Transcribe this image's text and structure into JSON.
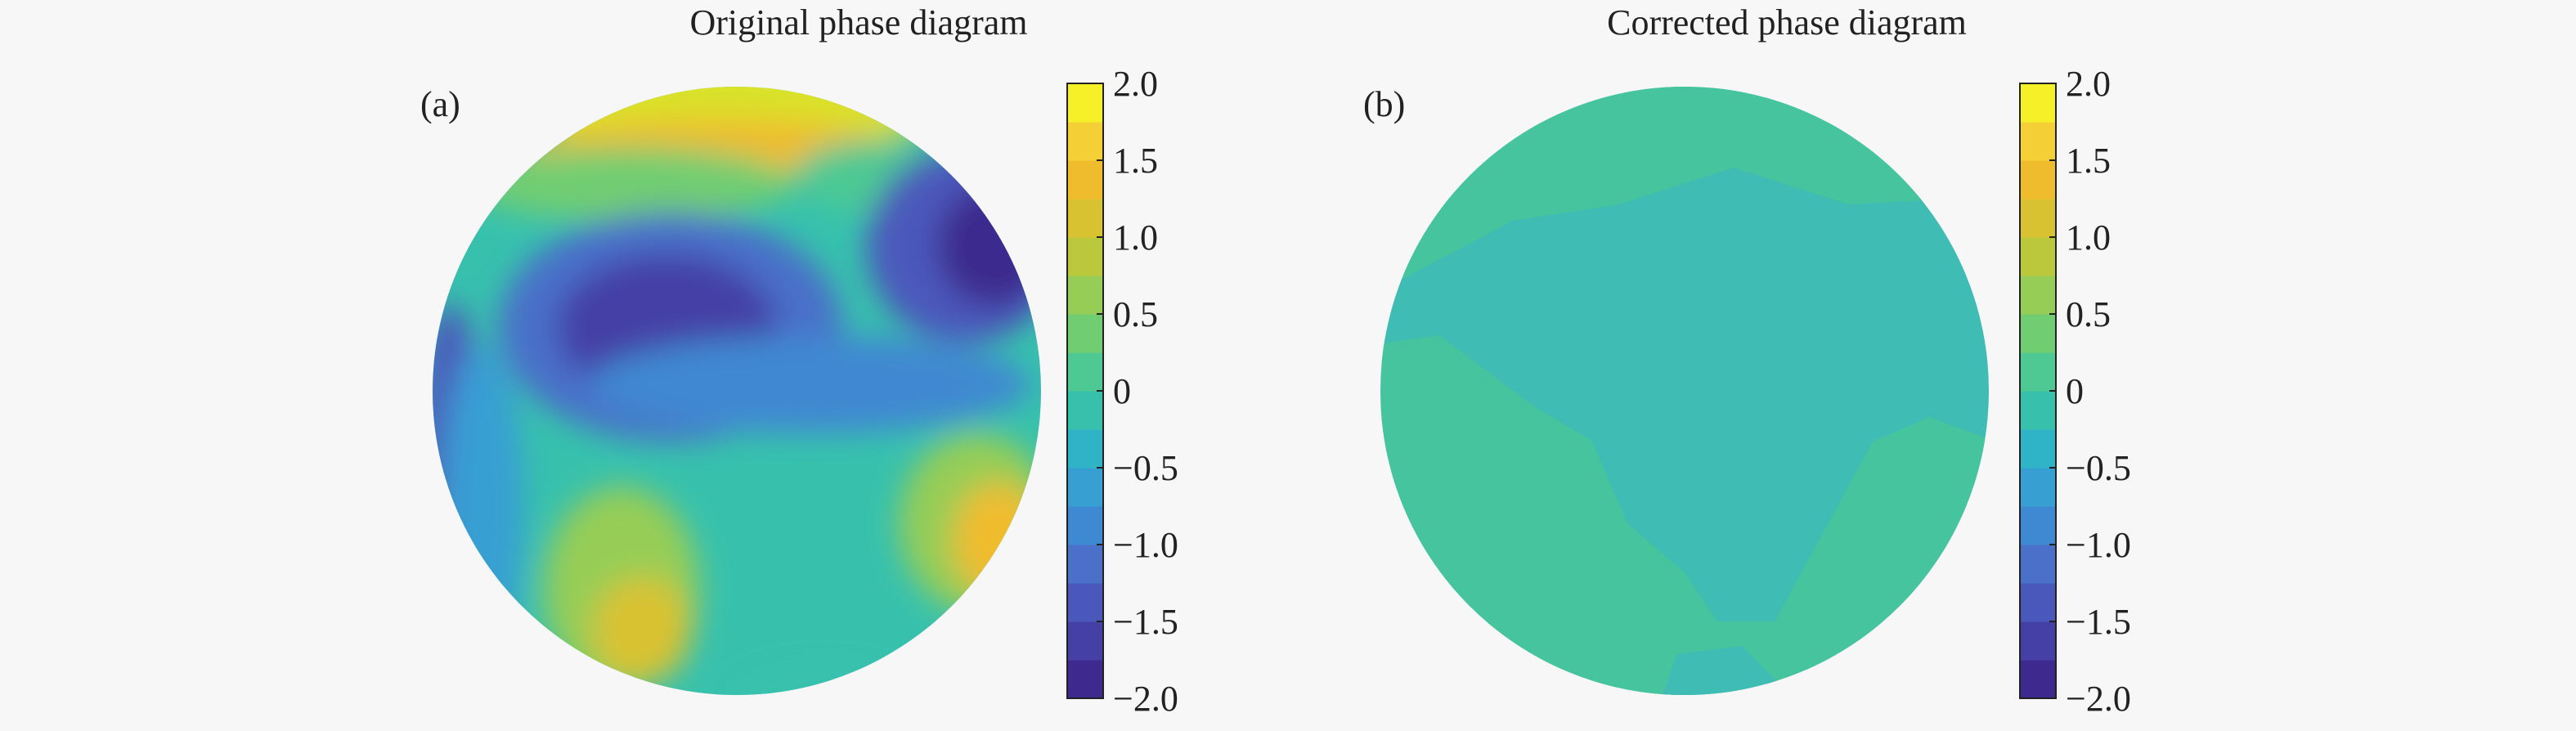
{
  "chart_data": [
    {
      "type": "heatmap",
      "title": "Original phase diagram",
      "panel_label": "(a)",
      "colorbar": {
        "ticks": [
          "2.0",
          "1.5",
          "1.0",
          "0.5",
          "0",
          "−0.5",
          "−1.0",
          "−1.5",
          "−2.0"
        ],
        "range": [
          -2.0,
          2.0
        ],
        "levels": 16
      },
      "grid": false,
      "domain_shape": "circular pupil"
    },
    {
      "type": "heatmap",
      "title": "Corrected phase diagram",
      "panel_label": "(b)",
      "colorbar": {
        "ticks": [
          "2.0",
          "1.5",
          "1.0",
          "0.5",
          "0",
          "−0.5",
          "−1.0",
          "−1.5",
          "−2.0"
        ],
        "range": [
          -2.0,
          2.0
        ],
        "levels": 16
      },
      "grid": false,
      "domain_shape": "circular pupil"
    }
  ],
  "colormap": [
    "#3e2a8e",
    "#4540a6",
    "#4b58bb",
    "#4a70c9",
    "#3f88d2",
    "#389fd3",
    "#2fb3c6",
    "#37c1ad",
    "#4ec993",
    "#71cd72",
    "#96cd56",
    "#bcc83c",
    "#d9c231",
    "#efbc2e",
    "#f4cf36",
    "#f6f028"
  ]
}
